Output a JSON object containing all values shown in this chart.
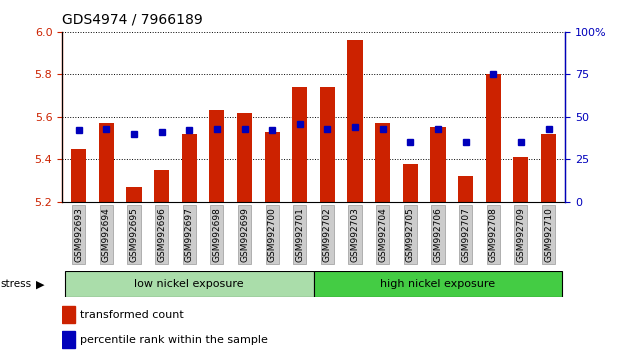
{
  "title": "GDS4974 / 7966189",
  "samples": [
    "GSM992693",
    "GSM992694",
    "GSM992695",
    "GSM992696",
    "GSM992697",
    "GSM992698",
    "GSM992699",
    "GSM992700",
    "GSM992701",
    "GSM992702",
    "GSM992703",
    "GSM992704",
    "GSM992705",
    "GSM992706",
    "GSM992707",
    "GSM992708",
    "GSM992709",
    "GSM992710"
  ],
  "transformed_count": [
    5.45,
    5.57,
    5.27,
    5.35,
    5.52,
    5.63,
    5.62,
    5.53,
    5.74,
    5.74,
    5.96,
    5.57,
    5.38,
    5.55,
    5.32,
    5.8,
    5.41,
    5.52
  ],
  "percentile_rank": [
    42,
    43,
    40,
    41,
    42,
    43,
    43,
    42,
    46,
    43,
    44,
    43,
    35,
    43,
    35,
    75,
    35,
    43
  ],
  "group_labels": [
    "low nickel exposure",
    "high nickel exposure"
  ],
  "group_split": 9,
  "group_colors": [
    "#aaddaa",
    "#44cc44"
  ],
  "y_min": 5.2,
  "y_max": 6.0,
  "y_ticks": [
    5.2,
    5.4,
    5.6,
    5.8,
    6.0
  ],
  "y_right_ticks": [
    0,
    25,
    50,
    75,
    100
  ],
  "bar_color": "#CC2200",
  "dot_color": "#0000BB",
  "bar_bottom": 5.2,
  "stress_label": "stress",
  "legend_bar_label": "transformed count",
  "legend_dot_label": "percentile rank within the sample",
  "title_fontsize": 10,
  "axis_label_color_left": "#CC2200",
  "axis_label_color_right": "#0000BB",
  "bg_color": "#ffffff"
}
